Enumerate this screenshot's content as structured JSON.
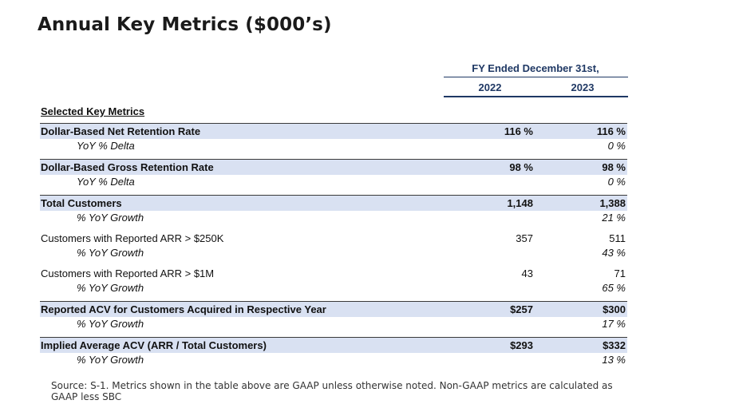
{
  "title": "Annual Key Metrics ($000’s)",
  "header": {
    "period": "FY Ended December 31st,",
    "years": [
      "2022",
      "2023"
    ]
  },
  "section_title": "Selected Key Metrics",
  "rows": [
    {
      "label": "Dollar-Based Net Retention Rate",
      "v2022": "116 %",
      "v2023": "116 %"
    },
    {
      "label": "YoY % Delta",
      "v2022": "",
      "v2023": "0 %"
    },
    {
      "label": "Dollar-Based Gross Retention Rate",
      "v2022": "98 %",
      "v2023": "98 %"
    },
    {
      "label": "YoY % Delta",
      "v2022": "",
      "v2023": "0 %"
    },
    {
      "label": "Total Customers",
      "v2022": "1,148",
      "v2023": "1,388"
    },
    {
      "label": "% YoY Growth",
      "v2022": "",
      "v2023": "21 %"
    },
    {
      "label": "Customers with Reported ARR > $250K",
      "v2022": "357",
      "v2023": "511"
    },
    {
      "label": "% YoY Growth",
      "v2022": "",
      "v2023": "43 %"
    },
    {
      "label": "Customers with Reported ARR > $1M",
      "v2022": "43",
      "v2023": "71"
    },
    {
      "label": "% YoY Growth",
      "v2022": "",
      "v2023": "65 %"
    },
    {
      "label": "Reported ACV for Customers Acquired in Respective Year",
      "v2022": "$257",
      "v2023": "$300"
    },
    {
      "label": "% YoY Growth",
      "v2022": "",
      "v2023": "17 %"
    },
    {
      "label": "Implied Average ACV (ARR / Total Customers)",
      "v2022": "$293",
      "v2023": "$332"
    },
    {
      "label": "% YoY Growth",
      "v2022": "",
      "v2023": "13 %"
    }
  ],
  "source": "Source: S-1. Metrics shown in the table above are GAAP unless otherwise noted. Non-GAAP metrics are calculated as GAAP less SBC"
}
